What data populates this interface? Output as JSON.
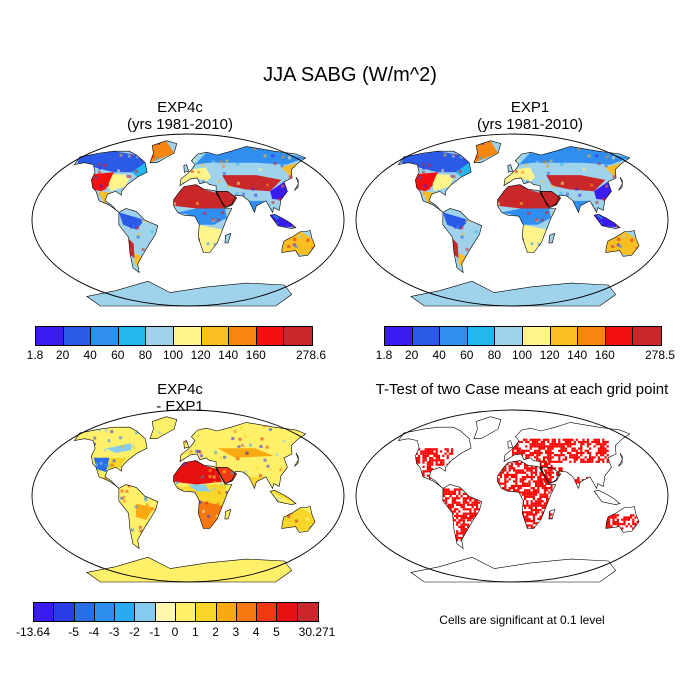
{
  "figure": {
    "title": "JJA SABG (W/m^2)",
    "panels": [
      {
        "id": "exp4c",
        "title_line1": "EXP4c",
        "title_line2": "(yrs 1981-2010)"
      },
      {
        "id": "exp1",
        "title_line1": "EXP1",
        "title_line2": "(yrs 1981-2010)"
      },
      {
        "id": "diff",
        "title_line1": "EXP4c",
        "title_line2": "- EXP1"
      },
      {
        "id": "ttest",
        "title_line1": "T-Test of two Case means at each grid point"
      }
    ],
    "note": "Cells are significant at 0.1 level"
  },
  "colorbars": {
    "abs_colors": [
      "#3a1cf0",
      "#2a5ae6",
      "#2f8ef0",
      "#22b8ee",
      "#9fd3ec",
      "#fff48c",
      "#f9be22",
      "#f6860f",
      "#f21010",
      "#c8282a"
    ],
    "abs_left": [
      "1.8",
      "20",
      "40",
      "60",
      "80",
      "100",
      "120",
      "140",
      "160",
      "278.6"
    ],
    "abs_right": [
      "1.8",
      "20",
      "40",
      "60",
      "80",
      "100",
      "120",
      "140",
      "160",
      "278.5"
    ],
    "diff_colors": [
      "#3a1cf0",
      "#2a3ee6",
      "#2a6ee6",
      "#2e8ef0",
      "#2aaaf0",
      "#86ccf0",
      "#fff6b0",
      "#fff06a",
      "#f9d62a",
      "#f9aa12",
      "#f67810",
      "#f23a12",
      "#e61010",
      "#c8282a"
    ],
    "diff": [
      "-13.64",
      "-5",
      "-4",
      "-3",
      "-2",
      "-1",
      "0",
      "1",
      "2",
      "3",
      "4",
      "5",
      "30.271"
    ]
  },
  "map_colors": {
    "ocean": "#ffffff",
    "coast": "#000000",
    "signif": "#ff0000"
  }
}
